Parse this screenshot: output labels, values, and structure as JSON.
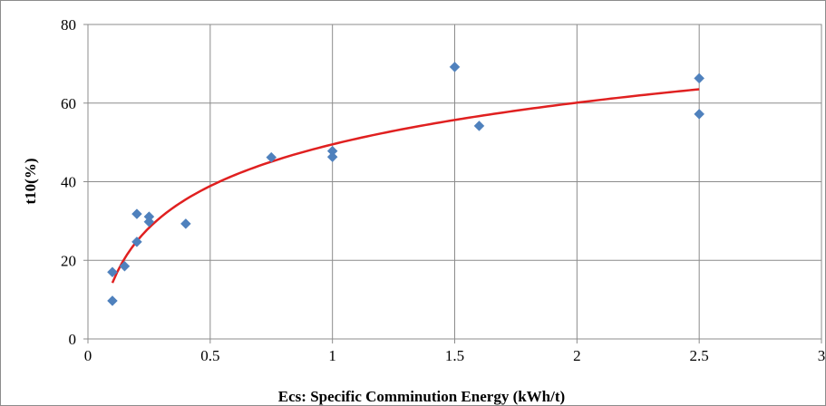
{
  "chart_data": {
    "type": "scatter",
    "title": "",
    "xlabel": "Ecs: Specific Comminution  Energy (kWh/t)",
    "ylabel": "t10(%)",
    "xlim": [
      0,
      3
    ],
    "ylim": [
      0,
      80
    ],
    "x_ticks": [
      0,
      0.5,
      1,
      1.5,
      2,
      2.5,
      3
    ],
    "x_tick_labels": [
      "0",
      "0.5",
      "1",
      "1.5",
      "2",
      "2.5",
      "3"
    ],
    "y_ticks": [
      0,
      20,
      40,
      60,
      80
    ],
    "y_tick_labels": [
      "0",
      "20",
      "40",
      "60",
      "80"
    ],
    "grid": true,
    "legend": "none",
    "series": [
      {
        "marker": "diamond",
        "color": "#4f81bd",
        "points": [
          {
            "x": 0.1,
            "y": 17.0
          },
          {
            "x": 0.1,
            "y": 9.7
          },
          {
            "x": 0.15,
            "y": 18.5
          },
          {
            "x": 0.2,
            "y": 31.8
          },
          {
            "x": 0.2,
            "y": 24.7
          },
          {
            "x": 0.25,
            "y": 31.1
          },
          {
            "x": 0.25,
            "y": 29.8
          },
          {
            "x": 0.4,
            "y": 29.3
          },
          {
            "x": 0.75,
            "y": 46.2
          },
          {
            "x": 1.0,
            "y": 47.8
          },
          {
            "x": 1.0,
            "y": 46.3
          },
          {
            "x": 1.5,
            "y": 69.2
          },
          {
            "x": 1.6,
            "y": 54.2
          },
          {
            "x": 2.5,
            "y": 66.3
          },
          {
            "x": 2.5,
            "y": 57.2
          }
        ]
      }
    ],
    "trendline": {
      "type": "logarithmic",
      "color": "#e02020",
      "a": 49.5,
      "b": 15.3,
      "x_range": [
        0.1,
        2.5
      ]
    }
  }
}
